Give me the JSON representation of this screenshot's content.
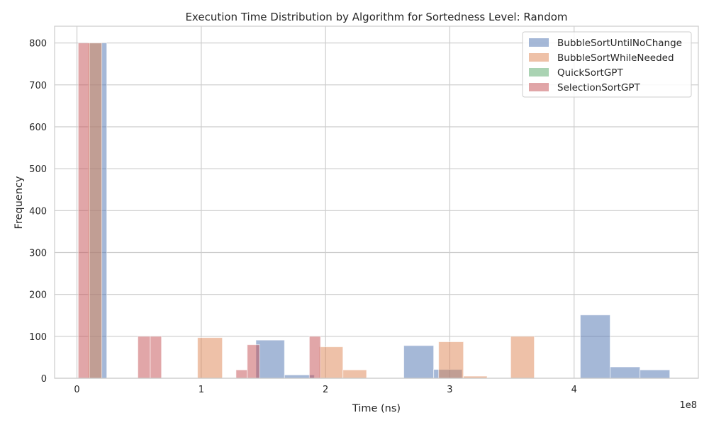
{
  "chart_data": {
    "type": "histogram",
    "title": "Execution Time Distribution by Algorithm for Sortedness Level: Random",
    "xlabel": "Time (ns)",
    "ylabel": "Frequency",
    "x_offset_label": "1e8",
    "xlim": [
      -0.18,
      5.0
    ],
    "ylim": [
      0,
      840
    ],
    "x_ticks": [
      0,
      1,
      2,
      3,
      4
    ],
    "x_tick_labels": [
      "0",
      "1",
      "2",
      "3",
      "4"
    ],
    "y_ticks": [
      0,
      100,
      200,
      300,
      400,
      500,
      600,
      700,
      800
    ],
    "y_tick_labels": [
      "0",
      "100",
      "200",
      "300",
      "400",
      "500",
      "600",
      "700",
      "800"
    ],
    "grid": true,
    "legend_position": "top-right",
    "series": [
      {
        "name": "BubbleSortUntilNoChange",
        "color": "#4c72b0",
        "bins": [
          {
            "x0": 0.1,
            "x1": 0.24,
            "value": 800
          },
          {
            "x0": 1.44,
            "x1": 1.67,
            "value": 91
          },
          {
            "x0": 1.67,
            "x1": 1.91,
            "value": 8
          },
          {
            "x0": 2.63,
            "x1": 2.87,
            "value": 78
          },
          {
            "x0": 2.87,
            "x1": 3.1,
            "value": 21
          },
          {
            "x0": 4.05,
            "x1": 4.29,
            "value": 151
          },
          {
            "x0": 4.29,
            "x1": 4.53,
            "value": 27
          },
          {
            "x0": 4.53,
            "x1": 4.77,
            "value": 20
          }
        ]
      },
      {
        "name": "BubbleSortWhileNeeded",
        "color": "#dd8452",
        "bins": [
          {
            "x0": 0.09,
            "x1": 0.2,
            "value": 800
          },
          {
            "x0": 0.97,
            "x1": 1.17,
            "value": 97
          },
          {
            "x0": 1.95,
            "x1": 2.14,
            "value": 75
          },
          {
            "x0": 2.14,
            "x1": 2.33,
            "value": 20
          },
          {
            "x0": 2.91,
            "x1": 3.11,
            "value": 87
          },
          {
            "x0": 3.11,
            "x1": 3.3,
            "value": 5
          },
          {
            "x0": 3.49,
            "x1": 3.68,
            "value": 100
          }
        ]
      },
      {
        "name": "QuickSortGPT",
        "color": "#55a868",
        "bins": []
      },
      {
        "name": "SelectionSortGPT",
        "color": "#c44e52",
        "bins": [
          {
            "x0": 0.01,
            "x1": 0.1,
            "value": 800
          },
          {
            "x0": 0.49,
            "x1": 0.59,
            "value": 100
          },
          {
            "x0": 0.59,
            "x1": 0.68,
            "value": 100
          },
          {
            "x0": 1.28,
            "x1": 1.37,
            "value": 20
          },
          {
            "x0": 1.37,
            "x1": 1.47,
            "value": 80
          },
          {
            "x0": 1.87,
            "x1": 1.96,
            "value": 100
          }
        ]
      }
    ]
  }
}
